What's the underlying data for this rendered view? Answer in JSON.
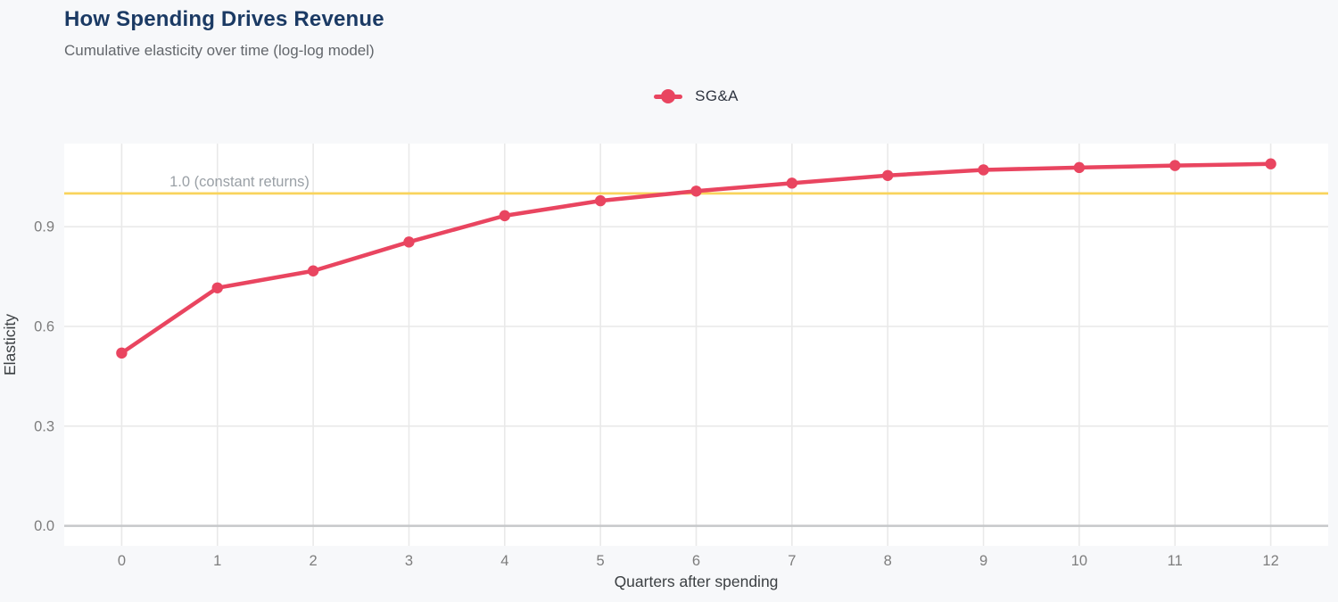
{
  "header": {
    "title": "How Spending Drives Revenue",
    "subtitle": "Cumulative elasticity over time (log-log model)"
  },
  "legend": {
    "position": "top-center",
    "items": [
      {
        "label": "SG&A",
        "color": "#e94560"
      }
    ]
  },
  "colors": {
    "accent": "#e94560",
    "reference_line": "#f9d45c",
    "title": "#1b3a64",
    "page_background": "#f7f8fa",
    "plot_background": "#ffffff",
    "gridline": "#e9e9e9",
    "zero_line": "#c6c8ca",
    "tick_label": "#7d7d7d",
    "axis_title": "#3c4043",
    "annotation": "#9aa0a6"
  },
  "chart_data": {
    "type": "line",
    "title": "How Spending Drives Revenue",
    "subtitle": "Cumulative elasticity over time (log-log model)",
    "xlabel": "Quarters after spending",
    "ylabel": "Elasticity",
    "x": [
      0,
      1,
      2,
      3,
      4,
      5,
      6,
      7,
      8,
      9,
      10,
      11,
      12
    ],
    "series": [
      {
        "name": "SG&A",
        "color": "#e94560",
        "values": [
          0.52,
          0.716,
          0.767,
          0.854,
          0.933,
          0.978,
          1.007,
          1.031,
          1.054,
          1.071,
          1.078,
          1.084,
          1.089
        ]
      }
    ],
    "xticks": [
      0,
      1,
      2,
      3,
      4,
      5,
      6,
      7,
      8,
      9,
      10,
      11,
      12
    ],
    "yticks": [
      0,
      0.3,
      0.6,
      0.9
    ],
    "xlim": [
      -0.6,
      12.6
    ],
    "ylim": [
      -0.06,
      1.15
    ],
    "grid": true,
    "legend_position": "top-center",
    "reference_line": {
      "y": 1.0,
      "label": "1.0 (constant returns)",
      "color": "#f9d45c"
    }
  }
}
